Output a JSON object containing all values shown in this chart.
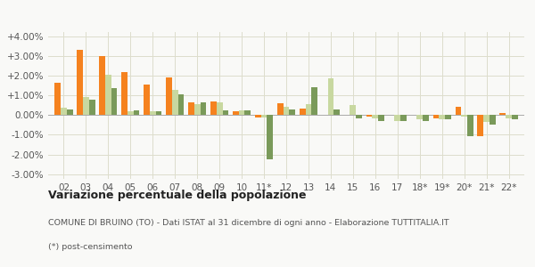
{
  "years": [
    "02",
    "03",
    "04",
    "05",
    "06",
    "07",
    "08",
    "09",
    "10",
    "11*",
    "12",
    "13",
    "14",
    "15",
    "16",
    "17",
    "18*",
    "19*",
    "20*",
    "21*",
    "22*"
  ],
  "bruino": [
    1.65,
    3.35,
    3.0,
    2.2,
    1.55,
    1.95,
    0.65,
    0.7,
    0.2,
    -0.1,
    0.6,
    0.35,
    0.0,
    0.0,
    -0.05,
    0.0,
    0.0,
    -0.15,
    0.45,
    -1.05,
    0.1
  ],
  "bruino_vis": [
    1,
    1,
    1,
    1,
    1,
    1,
    1,
    1,
    1,
    1,
    1,
    1,
    0,
    0,
    1,
    0,
    0,
    1,
    1,
    1,
    1
  ],
  "provincia_to": [
    0.4,
    0.95,
    2.05,
    0.2,
    0.2,
    1.3,
    0.55,
    0.65,
    0.25,
    -0.1,
    0.45,
    0.55,
    1.9,
    0.5,
    -0.15,
    -0.3,
    -0.2,
    -0.2,
    -0.05,
    -0.35,
    -0.15
  ],
  "piemonte": [
    0.3,
    0.8,
    1.4,
    0.25,
    0.2,
    1.05,
    0.65,
    0.25,
    0.25,
    -2.25,
    0.3,
    1.45,
    0.3,
    -0.15,
    -0.3,
    -0.3,
    -0.3,
    -0.2,
    -1.05,
    -0.5,
    -0.2
  ],
  "color_bruino": "#f5821f",
  "color_provincia": "#c8d8a0",
  "color_piemonte": "#7a9a5a",
  "title_bold": "Variazione percentuale della popolazione",
  "subtitle": "COMUNE DI BRUINO (TO) - Dati ISTAT al 31 dicembre di ogni anno - Elaborazione TUTTITALIA.IT",
  "footnote": "(*) post-censimento",
  "ylim": [
    -3.25,
    4.25
  ],
  "yticks": [
    -3.0,
    -2.0,
    -1.0,
    0.0,
    1.0,
    2.0,
    3.0,
    4.0
  ],
  "ytick_labels": [
    "-3.00%",
    "-2.00%",
    "-1.00%",
    "0.00%",
    "+1.00%",
    "+2.00%",
    "+3.00%",
    "+4.00%"
  ],
  "bg_color": "#f9f9f7",
  "grid_color": "#ddddcc"
}
